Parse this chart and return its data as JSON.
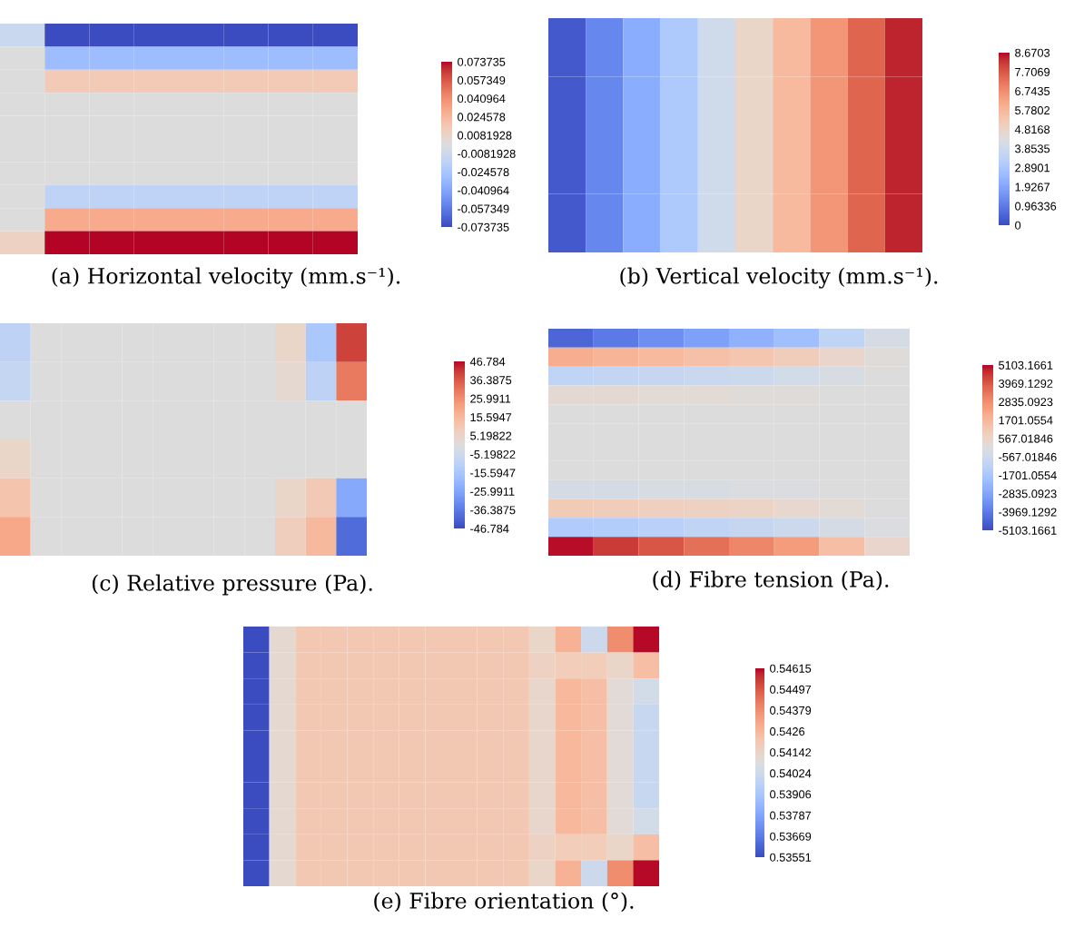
{
  "chart_data": [
    {
      "type": "heatmap",
      "title": "(a) Horizontal velocity (mm.s⁻¹).",
      "tick_labels": false,
      "categories": [
        null,
        null,
        null,
        null,
        null,
        null,
        null,
        null
      ],
      "y_categories": [
        null,
        null,
        null,
        null,
        null,
        null,
        null,
        null,
        null,
        null
      ],
      "cells": [
        [
          -0.01,
          -0.074,
          -0.074,
          -0.074,
          -0.074,
          -0.074,
          -0.074,
          -0.074
        ],
        [
          0,
          -0.03,
          -0.03,
          -0.03,
          -0.03,
          -0.03,
          -0.03,
          -0.03
        ],
        [
          0,
          0.015,
          0.015,
          0.015,
          0.015,
          0.015,
          0.015,
          0.015
        ],
        [
          0,
          0,
          0,
          0,
          0,
          0,
          0,
          0
        ],
        [
          0,
          0,
          0,
          0,
          0,
          0,
          0,
          0
        ],
        [
          0,
          0,
          0,
          0,
          0,
          0,
          0,
          0
        ],
        [
          0,
          0,
          0,
          0,
          0,
          0,
          0,
          0
        ],
        [
          0,
          -0.015,
          -0.015,
          -0.015,
          -0.015,
          -0.015,
          -0.015,
          -0.015
        ],
        [
          0,
          0.03,
          0.03,
          0.03,
          0.03,
          0.03,
          0.03,
          0.03
        ],
        [
          0.01,
          0.074,
          0.074,
          0.074,
          0.074,
          0.074,
          0.074,
          0.074
        ]
      ],
      "clim": [
        -0.073735,
        0.073735
      ],
      "cticks": [
        0.073735,
        0.057349,
        0.040964,
        0.024578,
        0.0081928,
        -0.0081928,
        -0.024578,
        -0.040964,
        -0.057349,
        -0.073735
      ]
    },
    {
      "type": "heatmap",
      "title": "(b) Vertical velocity (mm.s⁻¹).",
      "tick_labels": false,
      "categories": [
        null,
        null,
        null,
        null,
        null,
        null,
        null,
        null,
        null,
        null
      ],
      "y_categories": [
        null,
        null,
        null,
        null
      ],
      "cells": [
        [
          0.3,
          1.2,
          2.1,
          3.0,
          3.9,
          4.8,
          5.7,
          6.6,
          7.5,
          8.4
        ],
        [
          0.3,
          1.2,
          2.1,
          3.0,
          3.9,
          4.8,
          5.7,
          6.6,
          7.5,
          8.4
        ],
        [
          0.3,
          1.2,
          2.1,
          3.0,
          3.9,
          4.8,
          5.7,
          6.6,
          7.5,
          8.4
        ],
        [
          0.3,
          1.2,
          2.1,
          3.0,
          3.9,
          4.8,
          5.7,
          6.6,
          7.5,
          8.4
        ]
      ],
      "clim": [
        0,
        8.6703
      ],
      "cticks": [
        8.6703,
        7.7069,
        6.7435,
        5.7802,
        4.8168,
        3.8535,
        2.8901,
        1.9267,
        0.96336,
        0
      ]
    },
    {
      "type": "heatmap",
      "title": "(c) Relative pressure (Pa).",
      "tick_labels": false,
      "categories": [
        null,
        null,
        null,
        null,
        null,
        null,
        null,
        null,
        null,
        null,
        null,
        null
      ],
      "y_categories": [
        null,
        null,
        null,
        null,
        null,
        null
      ],
      "cells": [
        [
          -10,
          0,
          0,
          0,
          0,
          0,
          0,
          0,
          0,
          5,
          -15,
          40
        ],
        [
          -8,
          0,
          0,
          0,
          0,
          0,
          0,
          0,
          0,
          3,
          -10,
          30
        ],
        [
          0,
          0,
          0,
          0,
          0,
          0,
          0,
          0,
          0,
          0,
          0,
          0
        ],
        [
          5,
          0,
          0,
          0,
          0,
          0,
          0,
          0,
          0,
          0,
          0,
          0
        ],
        [
          12,
          0,
          0,
          0,
          0,
          0,
          0,
          0,
          0,
          5,
          10,
          -25
        ],
        [
          20,
          0,
          0,
          0,
          0,
          0,
          0,
          0,
          0,
          8,
          15,
          -40
        ]
      ],
      "clim": [
        -46.784,
        46.784
      ],
      "cticks": [
        46.784,
        36.3875,
        25.9911,
        15.5947,
        5.19822,
        -5.19822,
        -15.5947,
        -25.9911,
        -36.3875,
        -46.784
      ]
    },
    {
      "type": "heatmap",
      "title": "(d) Fibre tension (Pa).",
      "tick_labels": false,
      "categories": [
        null,
        null,
        null,
        null,
        null,
        null,
        null,
        null
      ],
      "y_categories": [
        null,
        null,
        null,
        null,
        null,
        null,
        null,
        null,
        null,
        null,
        null,
        null
      ],
      "cells": [
        [
          -4500,
          -4000,
          -3500,
          -3000,
          -2500,
          -2000,
          -1000,
          -300
        ],
        [
          2000,
          1800,
          1600,
          1400,
          1200,
          900,
          500,
          100
        ],
        [
          -1000,
          -900,
          -800,
          -700,
          -600,
          -400,
          -200,
          0
        ],
        [
          300,
          300,
          200,
          200,
          100,
          100,
          0,
          0
        ],
        [
          0,
          0,
          0,
          0,
          0,
          0,
          0,
          0
        ],
        [
          0,
          0,
          0,
          0,
          0,
          0,
          0,
          0
        ],
        [
          0,
          0,
          0,
          0,
          0,
          0,
          0,
          0
        ],
        [
          0,
          0,
          0,
          0,
          0,
          0,
          0,
          0
        ],
        [
          -300,
          -300,
          -200,
          -200,
          -100,
          -100,
          0,
          0
        ],
        [
          1000,
          900,
          800,
          700,
          600,
          400,
          200,
          0
        ],
        [
          -1500,
          -1400,
          -1200,
          -1000,
          -800,
          -600,
          -300,
          -100
        ],
        [
          5000,
          4500,
          4000,
          3500,
          3000,
          2500,
          1500,
          500
        ]
      ],
      "clim": [
        -5103.1661,
        5103.1661
      ],
      "cticks": [
        5103.1661,
        3969.1292,
        2835.0923,
        1701.0554,
        567.01846,
        -567.01846,
        -1701.0554,
        -2835.0923,
        -3969.1292,
        -5103.1661
      ]
    },
    {
      "type": "heatmap",
      "title": "(e) Fibre orientation (°).",
      "tick_labels": false,
      "categories": [
        null,
        null,
        null,
        null,
        null,
        null,
        null,
        null,
        null,
        null,
        null,
        null,
        null,
        null,
        null,
        null
      ],
      "y_categories": [
        null,
        null,
        null,
        null,
        null,
        null,
        null,
        null,
        null,
        null
      ],
      "cells": [
        [
          0.5355,
          0.5412,
          0.542,
          0.542,
          0.542,
          0.542,
          0.542,
          0.542,
          0.542,
          0.542,
          0.542,
          0.5414,
          0.5428,
          0.5402,
          0.5438,
          0.5461
        ],
        [
          0.5355,
          0.5412,
          0.542,
          0.542,
          0.542,
          0.542,
          0.542,
          0.542,
          0.542,
          0.542,
          0.542,
          0.5416,
          0.5418,
          0.5418,
          0.5414,
          0.5424
        ],
        [
          0.5355,
          0.5412,
          0.542,
          0.542,
          0.542,
          0.542,
          0.542,
          0.542,
          0.542,
          0.542,
          0.542,
          0.5413,
          0.5426,
          0.5424,
          0.541,
          0.5404
        ],
        [
          0.5355,
          0.5412,
          0.542,
          0.542,
          0.542,
          0.542,
          0.542,
          0.542,
          0.542,
          0.542,
          0.542,
          0.5413,
          0.5426,
          0.5424,
          0.541,
          0.54
        ],
        [
          0.5355,
          0.5412,
          0.542,
          0.542,
          0.542,
          0.542,
          0.542,
          0.542,
          0.542,
          0.542,
          0.542,
          0.5413,
          0.5426,
          0.5424,
          0.541,
          0.54
        ],
        [
          0.5355,
          0.5412,
          0.542,
          0.542,
          0.542,
          0.542,
          0.542,
          0.542,
          0.542,
          0.542,
          0.542,
          0.5413,
          0.5426,
          0.5424,
          0.541,
          0.54
        ],
        [
          0.5355,
          0.5412,
          0.542,
          0.542,
          0.542,
          0.542,
          0.542,
          0.542,
          0.542,
          0.542,
          0.542,
          0.5413,
          0.5426,
          0.5424,
          0.541,
          0.54
        ],
        [
          0.5355,
          0.5412,
          0.542,
          0.542,
          0.542,
          0.542,
          0.542,
          0.542,
          0.542,
          0.542,
          0.542,
          0.5413,
          0.5426,
          0.5424,
          0.541,
          0.5404
        ],
        [
          0.5355,
          0.5412,
          0.542,
          0.542,
          0.542,
          0.542,
          0.542,
          0.542,
          0.542,
          0.542,
          0.542,
          0.5416,
          0.5418,
          0.5418,
          0.5414,
          0.5424
        ],
        [
          0.5355,
          0.5412,
          0.542,
          0.542,
          0.542,
          0.542,
          0.542,
          0.542,
          0.542,
          0.542,
          0.542,
          0.5414,
          0.5428,
          0.5402,
          0.5438,
          0.5461
        ]
      ],
      "clim": [
        0.53551,
        0.54615
      ],
      "cticks": [
        0.54615,
        0.54497,
        0.54379,
        0.5426,
        0.54142,
        0.54024,
        0.53906,
        0.53787,
        0.53669,
        0.53551
      ]
    }
  ]
}
